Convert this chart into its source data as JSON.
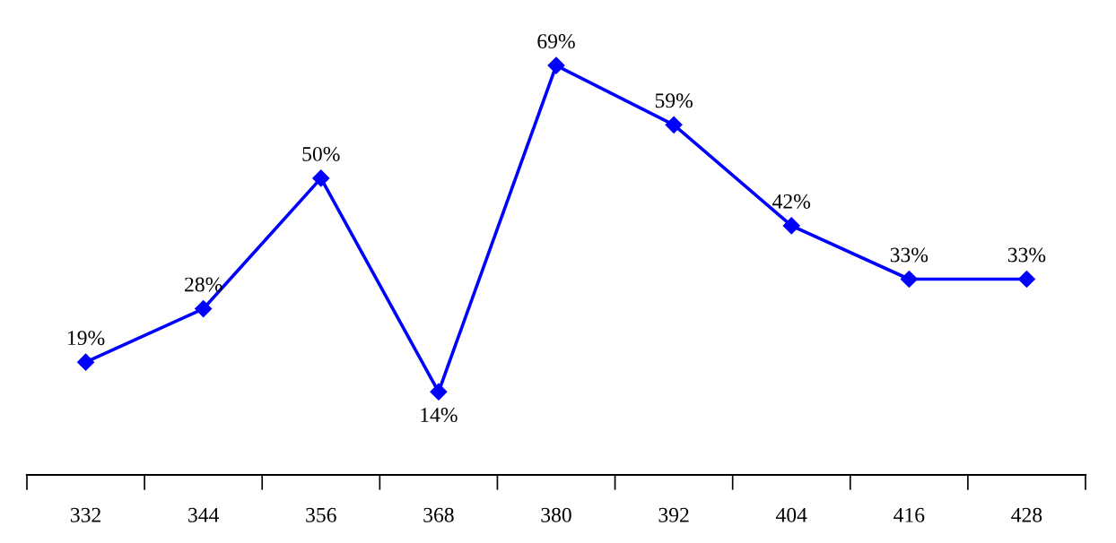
{
  "chart_data": {
    "type": "line",
    "categories": [
      "332",
      "344",
      "356",
      "368",
      "380",
      "392",
      "404",
      "416",
      "428"
    ],
    "series": [
      {
        "color": "#0000ff",
        "values": [
          19,
          28,
          50,
          14,
          69,
          59,
          42,
          33,
          33
        ],
        "value_labels": [
          "19%",
          "28%",
          "50%",
          "14%",
          "69%",
          "59%",
          "42%",
          "33%",
          "33%"
        ]
      }
    ],
    "marker": "diamond",
    "line_style": "solid",
    "grid": false,
    "legend": false
  }
}
